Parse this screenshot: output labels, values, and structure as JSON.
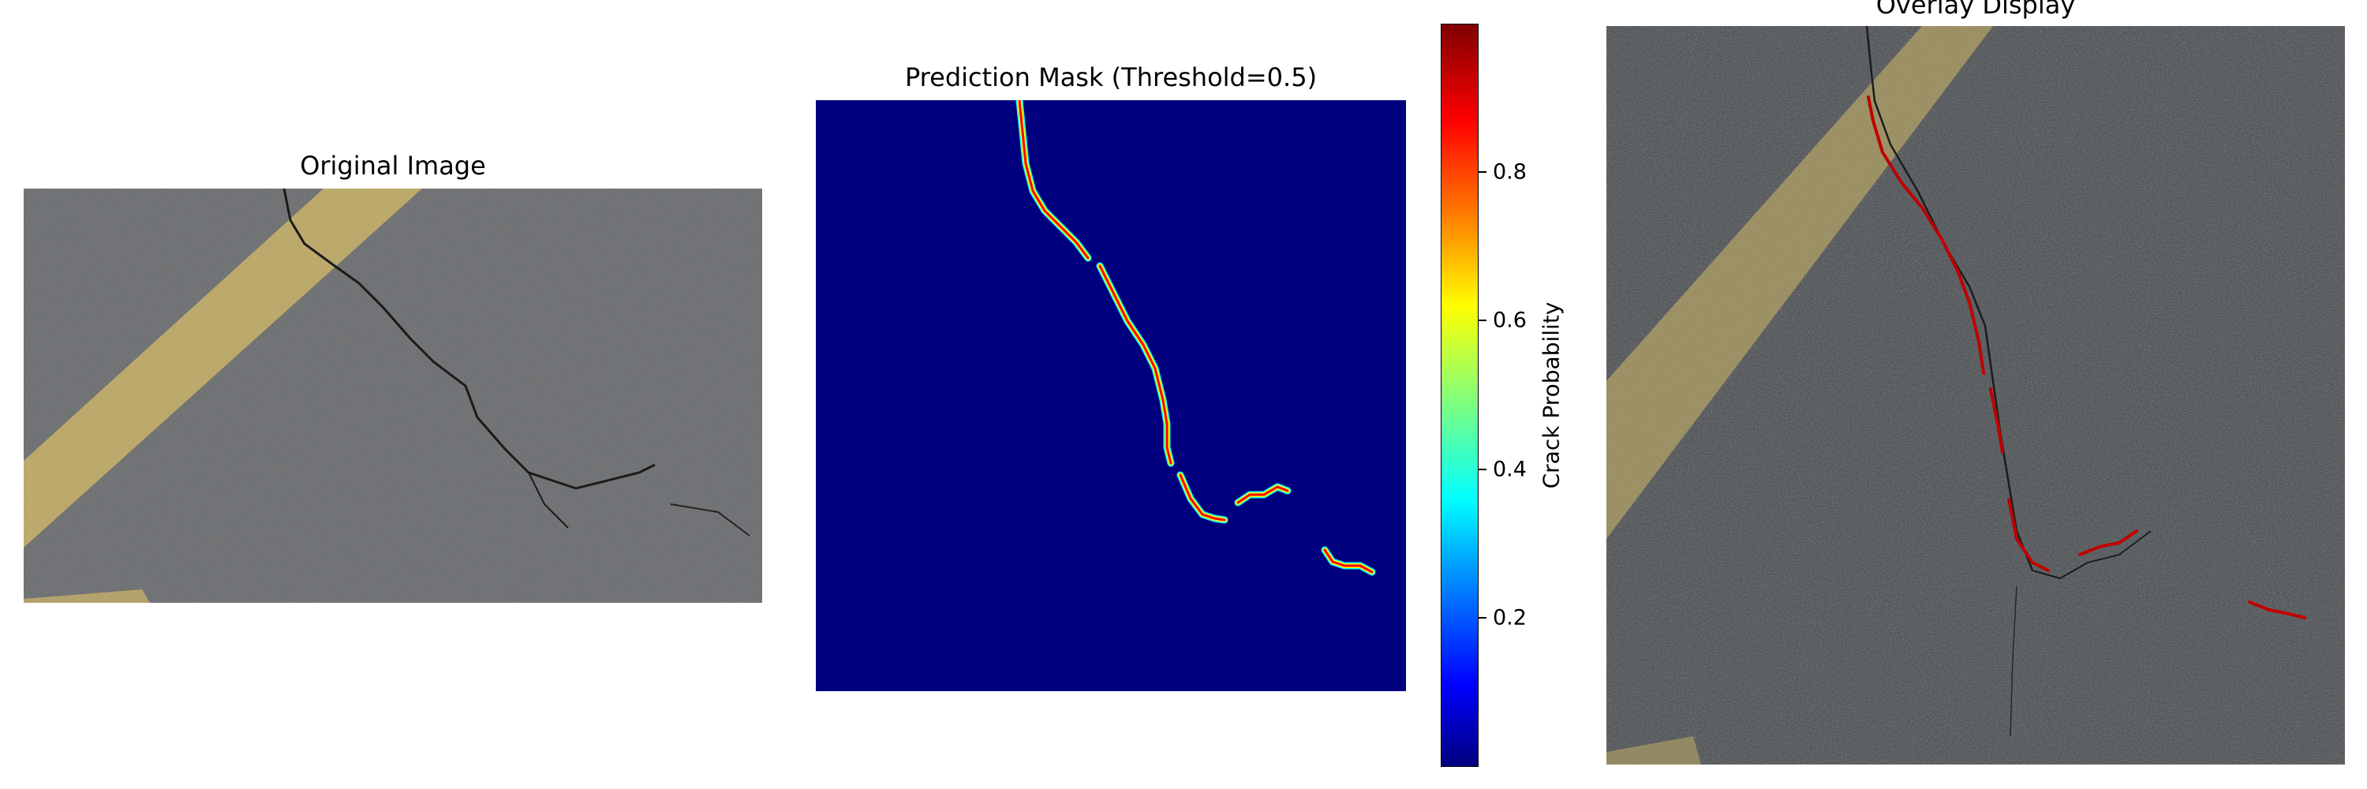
{
  "panels": {
    "original": {
      "title": "Original Image"
    },
    "mask": {
      "title": "Prediction Mask (Threshold=0.5)"
    },
    "overlay": {
      "title": "Overlay Display"
    }
  },
  "colorbar": {
    "label": "Crack Probability",
    "colormap": "jet",
    "ticks": [
      "0.2",
      "0.4",
      "0.6",
      "0.8"
    ]
  },
  "colors": {
    "mask_background": "#00007f",
    "crack_high": "#c00000",
    "asphalt": "#5b5d60",
    "lane_marking": "#c9b36a"
  }
}
